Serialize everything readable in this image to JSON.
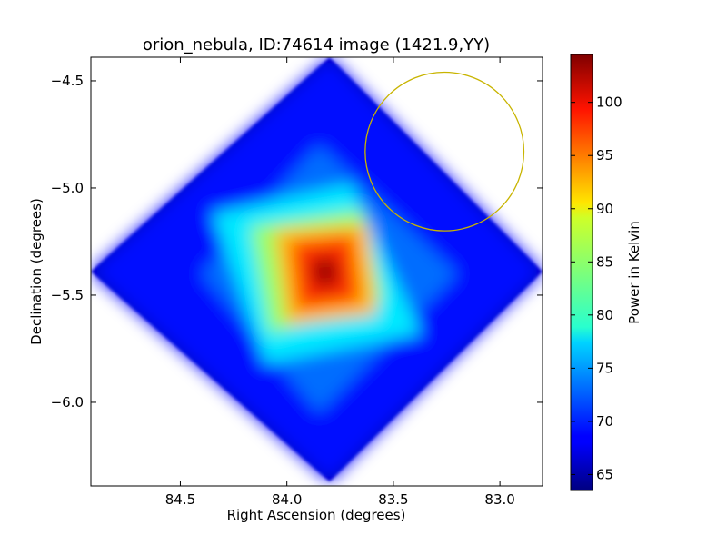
{
  "chart_data": {
    "type": "heatmap",
    "title": "orion_nebula, ID:74614 image (1421.9,YY)",
    "xlabel": "Right Ascension (degrees)",
    "ylabel": "Declination (degrees)",
    "xlim": [
      84.92,
      82.8
    ],
    "ylim": [
      -6.39,
      -4.39
    ],
    "x_inverted": true,
    "xticks": [
      84.5,
      84.0,
      83.5,
      83.0
    ],
    "xtick_labels": [
      "84.5",
      "84.0",
      "83.5",
      "83.0"
    ],
    "yticks": [
      -4.5,
      -5.0,
      -5.5,
      -6.0
    ],
    "ytick_labels": [
      "−4.5",
      "−5.0",
      "−5.5",
      "−6.0"
    ],
    "colormap": "jet",
    "colorbar": {
      "label": "Power in Kelvin",
      "range": [
        63.5,
        104.5
      ],
      "ticks": [
        65,
        70,
        75,
        80,
        85,
        90,
        95,
        100
      ],
      "tick_labels": [
        "65",
        "70",
        "75",
        "80",
        "85",
        "90",
        "95",
        "100"
      ]
    },
    "map": {
      "footprint_corners": [
        {
          "ra": 84.92,
          "dec": -5.39
        },
        {
          "ra": 83.8,
          "dec": -4.39
        },
        {
          "ra": 82.8,
          "dec": -5.39
        },
        {
          "ra": 83.8,
          "dec": -6.37
        }
      ],
      "peak": {
        "ra": 83.82,
        "dec": -5.39,
        "value": 104
      },
      "levels": [
        {
          "value": 69,
          "corners": [
            {
              "ra": 84.92,
              "dec": -5.39
            },
            {
              "ra": 83.8,
              "dec": -4.39
            },
            {
              "ra": 82.8,
              "dec": -5.39
            },
            {
              "ra": 83.8,
              "dec": -6.37
            }
          ]
        },
        {
          "value": 73,
          "corners": [
            {
              "ra": 84.4,
              "dec": -5.4
            },
            {
              "ra": 83.85,
              "dec": -4.8
            },
            {
              "ra": 83.2,
              "dec": -5.4
            },
            {
              "ra": 83.85,
              "dec": -6.05
            }
          ]
        },
        {
          "value": 78,
          "corners": [
            {
              "ra": 84.35,
              "dec": -5.12
            },
            {
              "ra": 83.7,
              "dec": -4.98
            },
            {
              "ra": 83.37,
              "dec": -5.68
            },
            {
              "ra": 84.1,
              "dec": -5.82
            }
          ]
        },
        {
          "value": 85,
          "corners": [
            {
              "ra": 84.17,
              "dec": -5.18
            },
            {
              "ra": 83.65,
              "dec": -5.1
            },
            {
              "ra": 83.55,
              "dec": -5.52
            },
            {
              "ra": 84.08,
              "dec": -5.68
            }
          ]
        },
        {
          "value": 92,
          "corners": [
            {
              "ra": 84.06,
              "dec": -5.2
            },
            {
              "ra": 83.62,
              "dec": -5.17
            },
            {
              "ra": 83.58,
              "dec": -5.59
            },
            {
              "ra": 84.0,
              "dec": -5.64
            }
          ]
        },
        {
          "value": 97,
          "corners": [
            {
              "ra": 83.98,
              "dec": -5.25
            },
            {
              "ra": 83.69,
              "dec": -5.22
            },
            {
              "ra": 83.66,
              "dec": -5.53
            },
            {
              "ra": 83.95,
              "dec": -5.57
            }
          ]
        },
        {
          "value": 101,
          "corners": [
            {
              "ra": 83.9,
              "dec": -5.32
            },
            {
              "ra": 83.76,
              "dec": -5.3
            },
            {
              "ra": 83.74,
              "dec": -5.47
            },
            {
              "ra": 83.88,
              "dec": -5.49
            }
          ]
        }
      ],
      "marker_circle": {
        "ra": 83.26,
        "dec": -4.83,
        "radius_deg": 0.37,
        "color": "#c8b400"
      }
    }
  }
}
